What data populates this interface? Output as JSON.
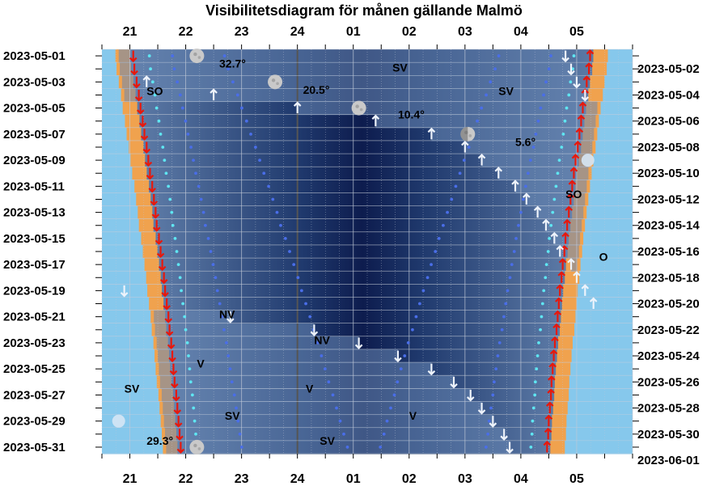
{
  "chart_data": {
    "type": "heatmap",
    "title": "Visibilitetsdiagram för månen gällande Malmö",
    "x_ticks": [
      "21",
      "22",
      "23",
      "24",
      "01",
      "02",
      "03",
      "04",
      "05"
    ],
    "left_dates": [
      "2023-05-01",
      "2023-05-03",
      "2023-05-05",
      "2023-05-07",
      "2023-05-09",
      "2023-05-11",
      "2023-05-13",
      "2023-05-15",
      "2023-05-17",
      "2023-05-19",
      "2023-05-21",
      "2023-05-23",
      "2023-05-25",
      "2023-05-27",
      "2023-05-29",
      "2023-05-31"
    ],
    "right_dates": [
      "2023-05-02",
      "2023-05-04",
      "2023-05-06",
      "2023-05-08",
      "2023-05-10",
      "2023-05-12",
      "2023-05-14",
      "2023-05-16",
      "2023-05-18",
      "2023-05-20",
      "2023-05-22",
      "2023-05-24",
      "2023-05-26",
      "2023-05-28",
      "2023-05-30",
      "2023-06-01"
    ],
    "altitude_labels": [
      {
        "text": "32.7°",
        "hour": 22.6,
        "day": 1.6
      },
      {
        "text": "20.5°",
        "hour": 24.1,
        "day": 3.6
      },
      {
        "text": "10.4°",
        "hour": 25.8,
        "day": 5.5
      },
      {
        "text": "5.6°",
        "hour": 27.9,
        "day": 7.6
      },
      {
        "text": "29.3°",
        "hour": 21.3,
        "day": 30.5
      }
    ],
    "direction_labels": [
      {
        "text": "SV",
        "hour": 25.7,
        "day": 1.9
      },
      {
        "text": "SO",
        "hour": 21.3,
        "day": 3.7
      },
      {
        "text": "SV",
        "hour": 27.6,
        "day": 3.7
      },
      {
        "text": "SO",
        "hour": 28.8,
        "day": 11.6
      },
      {
        "text": "O",
        "hour": 29.4,
        "day": 16.4
      },
      {
        "text": "NV",
        "hour": 22.6,
        "day": 20.8
      },
      {
        "text": "NV",
        "hour": 24.3,
        "day": 22.8
      },
      {
        "text": "V",
        "hour": 22.2,
        "day": 24.6
      },
      {
        "text": "V",
        "hour": 24.15,
        "day": 26.5
      },
      {
        "text": "SV",
        "hour": 20.9,
        "day": 26.5
      },
      {
        "text": "V",
        "hour": 26.0,
        "day": 28.6
      },
      {
        "text": "SV",
        "hour": 22.7,
        "day": 28.6
      },
      {
        "text": "SV",
        "hour": 24.4,
        "day": 30.5
      }
    ],
    "moon_phases": [
      {
        "hour": 22.2,
        "day": 1,
        "phase": "full"
      },
      {
        "hour": 23.6,
        "day": 3,
        "phase": "waning-gibbous"
      },
      {
        "hour": 25.1,
        "day": 5,
        "phase": "waning-gibbous"
      },
      {
        "hour": 27.05,
        "day": 7,
        "phase": "last-quarter"
      },
      {
        "hour": 29.2,
        "day": 9,
        "phase": "crescent"
      },
      {
        "hour": 20.8,
        "day": 29,
        "phase": "crescent"
      },
      {
        "hour": 22.2,
        "day": 31,
        "phase": "waxing-gibbous"
      }
    ],
    "sunset_hour": [
      20.8,
      20.82,
      20.86,
      20.9,
      20.93,
      20.97,
      21.0,
      21.04,
      21.07,
      21.1,
      21.14,
      21.17,
      21.2,
      21.22,
      21.26,
      21.29,
      21.32,
      21.35,
      21.37,
      21.4,
      21.43,
      21.45,
      21.48,
      21.5,
      21.52,
      21.54,
      21.57,
      21.59,
      21.61,
      21.63,
      21.65
    ],
    "sunrise_hour": [
      29.5,
      29.48,
      29.44,
      29.41,
      29.37,
      29.34,
      29.31,
      29.28,
      29.24,
      29.21,
      29.18,
      29.15,
      29.12,
      29.09,
      29.06,
      29.04,
      29.01,
      28.99,
      28.96,
      28.94,
      28.92,
      28.9,
      28.87,
      28.85,
      28.83,
      28.81,
      28.8,
      28.78,
      28.76,
      28.75,
      28.73
    ],
    "moonset_hour": [
      28.8,
      28.9,
      29.0,
      29.15,
      null,
      null,
      null,
      null,
      null,
      null,
      null,
      null,
      null,
      null,
      null,
      null,
      null,
      null,
      20.9,
      null,
      22.8,
      24.3,
      25.1,
      25.8,
      26.4,
      26.8,
      27.1,
      27.3,
      27.5,
      27.7,
      27.8
    ],
    "moonrise_hour": [
      null,
      null,
      21.3,
      22.5,
      24.0,
      25.4,
      26.4,
      27.0,
      27.3,
      27.6,
      27.9,
      28.1,
      28.3,
      28.45,
      28.6,
      28.7,
      28.9,
      29.0,
      29.15,
      29.3,
      null,
      null,
      null,
      null,
      null,
      null,
      null,
      null,
      null,
      null,
      null
    ]
  }
}
